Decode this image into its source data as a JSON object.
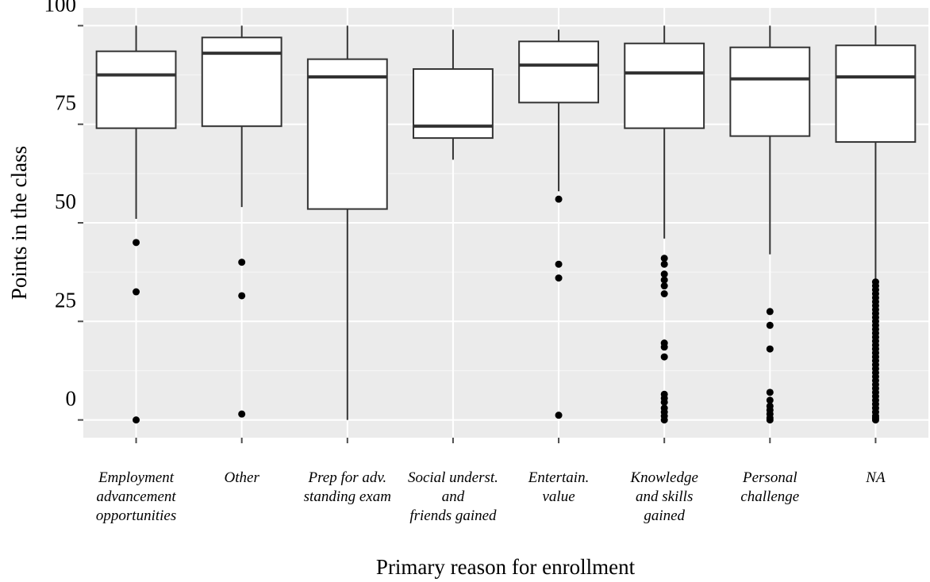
{
  "chart_data": {
    "type": "boxplot",
    "title": "",
    "xlabel": "Primary reason for enrollment",
    "ylabel": "Points in the class",
    "ylim": [
      -4.5,
      104.5
    ],
    "y_ticks": [
      {
        "label": "100",
        "value": 100
      },
      {
        "label": "75",
        "value": 75
      },
      {
        "label": "50",
        "value": 50
      },
      {
        "label": "25",
        "value": 25
      },
      {
        "label": "0",
        "value": 0
      }
    ],
    "grid": true,
    "categories": [
      {
        "lines": [
          "Employment",
          "advancement",
          "opportunities"
        ],
        "min": 51,
        "q1": 74,
        "median": 87.5,
        "q3": 93.5,
        "max": 100,
        "outliers": [
          45,
          32.5,
          0
        ]
      },
      {
        "lines": [
          "Other"
        ],
        "min": 54,
        "q1": 74.5,
        "median": 93,
        "q3": 97,
        "max": 100,
        "outliers": [
          40,
          31.5,
          1.5
        ]
      },
      {
        "lines": [
          "Prep for adv.",
          "standing exam"
        ],
        "min": 0,
        "q1": 53.5,
        "median": 87,
        "q3": 91.5,
        "max": 100,
        "outliers": []
      },
      {
        "lines": [
          "Social underst.",
          "and",
          "friends gained"
        ],
        "min": 66,
        "q1": 71.5,
        "median": 74.5,
        "q3": 89,
        "max": 99,
        "outliers": []
      },
      {
        "lines": [
          "Entertain.",
          "value"
        ],
        "min": 58,
        "q1": 80.5,
        "median": 90,
        "q3": 96,
        "max": 99,
        "outliers": [
          56,
          39.5,
          36,
          1.2
        ]
      },
      {
        "lines": [
          "Knowledge",
          "and skills",
          "gained"
        ],
        "min": 46,
        "q1": 74,
        "median": 88,
        "q3": 95.5,
        "max": 100,
        "outliers": [
          41,
          39.5,
          37,
          35.5,
          34,
          32,
          19.5,
          18.5,
          16,
          6.5,
          5.5,
          4.5,
          3,
          2,
          1,
          0
        ]
      },
      {
        "lines": [
          "Personal",
          "challenge"
        ],
        "min": 42,
        "q1": 72,
        "median": 86.5,
        "q3": 94.5,
        "max": 100,
        "outliers": [
          27.5,
          24,
          18,
          7,
          5,
          3.5,
          2.5,
          1.5,
          0.5,
          0
        ]
      },
      {
        "lines": [
          "NA"
        ],
        "min": 35,
        "q1": 70.5,
        "median": 87,
        "q3": 95,
        "max": 100,
        "outliers": [
          35,
          34,
          33,
          32,
          31,
          30,
          29,
          28,
          27,
          26,
          25,
          24,
          23,
          22,
          21,
          20,
          19,
          18,
          17,
          16,
          15,
          14,
          13,
          12,
          11,
          10,
          9,
          8,
          7,
          6,
          5,
          4,
          3,
          2,
          1,
          0.5,
          0
        ]
      }
    ]
  },
  "colors": {
    "panel": "#ebebeb",
    "grid_major": "#ffffff",
    "grid_minor": "#f5f5f5",
    "box_fill": "#ffffff",
    "box_stroke": "#333333",
    "point": "#000000",
    "tick": "#4d4d4d"
  }
}
